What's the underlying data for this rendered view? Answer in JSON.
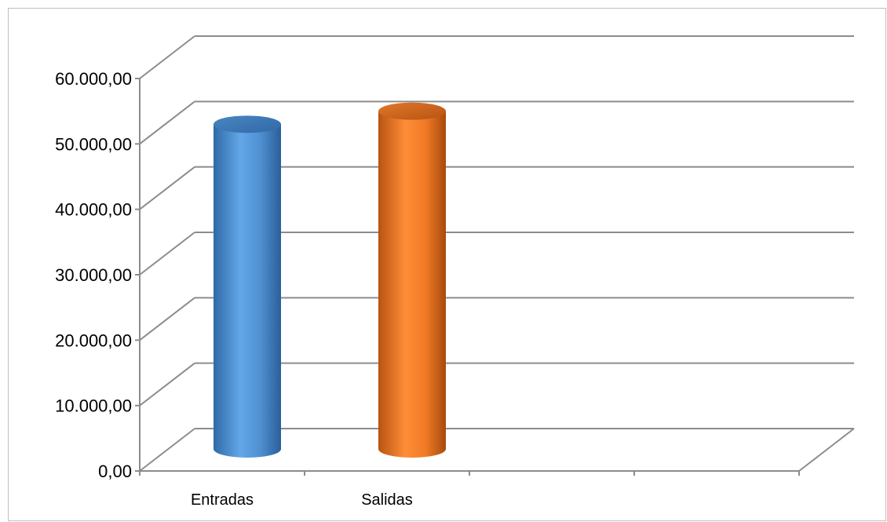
{
  "chart_data": {
    "type": "bar",
    "style": "3d-cylinder",
    "categories": [
      "Entradas",
      "Salidas",
      "",
      ""
    ],
    "series": [
      {
        "values": [
          50000,
          52000,
          null,
          null
        ]
      }
    ],
    "bar_colors": [
      "#5b9bd5",
      "#f7842c"
    ],
    "ylim": [
      0,
      60000
    ],
    "yticks": [
      0,
      10000,
      20000,
      30000,
      40000,
      50000,
      60000
    ],
    "ytick_labels": [
      "0,00",
      "10.000,00",
      "20.000,00",
      "30.000,00",
      "40.000,00",
      "50.000,00",
      "60.000,00"
    ],
    "grid": true,
    "legend": "none",
    "title": "",
    "xlabel": "",
    "ylabel": ""
  }
}
